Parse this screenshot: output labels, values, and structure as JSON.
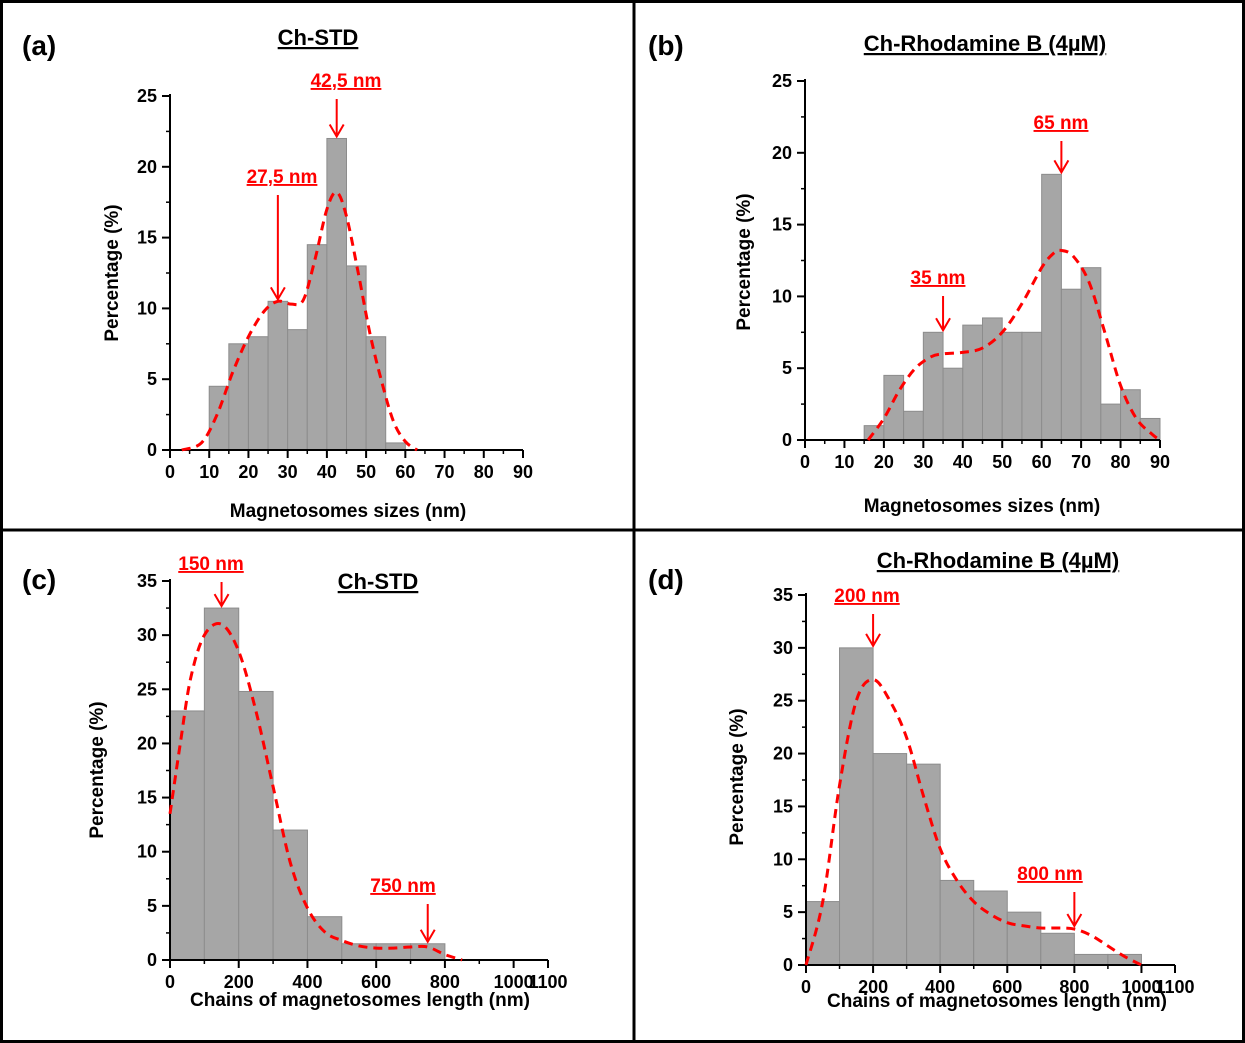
{
  "colors": {
    "bar_fill": "#a6a6a6",
    "bar_stroke": "#8c8c8c",
    "fit_curve": "#ff0000",
    "annotation": "#ff0000",
    "axis": "#000000"
  },
  "chart_data": [
    {
      "panel": "(a)",
      "type": "bar",
      "title": "Ch-STD",
      "xlabel": "Magnetosomes sizes (nm)",
      "ylabel": "Percentage (%)",
      "xlim": [
        0,
        90
      ],
      "ylim": [
        0,
        25
      ],
      "xticks": [
        0,
        10,
        20,
        30,
        40,
        50,
        60,
        70,
        80,
        90
      ],
      "yticks": [
        0,
        5,
        10,
        15,
        20,
        25
      ],
      "bin_width": 5,
      "bins_start": [
        5,
        10,
        15,
        20,
        25,
        30,
        35,
        40,
        45,
        50,
        55
      ],
      "values": [
        0,
        4.5,
        7.5,
        8,
        10.5,
        8.5,
        14.5,
        22,
        13,
        8,
        0.5
      ],
      "fit_curve": {
        "style": "dashed",
        "x": [
          3,
          8,
          12,
          16,
          20,
          24,
          27.5,
          31,
          34,
          37,
          40,
          42.5,
          45,
          48,
          51,
          54,
          57,
          60,
          63
        ],
        "y": [
          0,
          0.5,
          2.5,
          5.5,
          8,
          9.8,
          10.5,
          10.3,
          10.6,
          13.5,
          17,
          18.2,
          16.5,
          12.5,
          8.2,
          4.8,
          2,
          0.6,
          0
        ]
      },
      "annotations": [
        {
          "text": "27,5 nm",
          "x": 27.5,
          "y": 10.5
        },
        {
          "text": "42,5 nm",
          "x": 42.5,
          "y": 22
        }
      ]
    },
    {
      "panel": "(b)",
      "type": "bar",
      "title": "Ch-Rhodamine B (4µM)",
      "xlabel": "Magnetosomes sizes (nm)",
      "ylabel": "Percentage (%)",
      "xlim": [
        0,
        90
      ],
      "ylim": [
        0,
        25
      ],
      "xticks": [
        0,
        10,
        20,
        30,
        40,
        50,
        60,
        70,
        80,
        90
      ],
      "yticks": [
        0,
        5,
        10,
        15,
        20,
        25
      ],
      "bin_width": 5,
      "bins_start": [
        15,
        20,
        25,
        30,
        35,
        40,
        45,
        50,
        55,
        60,
        65,
        70,
        75,
        80,
        85
      ],
      "values": [
        1,
        4.5,
        2,
        7.5,
        5,
        8,
        8.5,
        7.5,
        7.5,
        18.5,
        10.5,
        12,
        2.5,
        3.5,
        1.5
      ],
      "fit_curve": {
        "style": "dashed",
        "x": [
          16,
          20,
          24,
          28,
          32,
          35,
          40,
          45,
          50,
          55,
          60,
          63,
          65,
          68,
          72,
          76,
          80,
          84,
          88,
          90
        ],
        "y": [
          0,
          1.5,
          3.5,
          5,
          5.8,
          6,
          6.1,
          6.4,
          7.5,
          9.5,
          12,
          13,
          13.2,
          12.8,
          11,
          7.5,
          3.8,
          1.5,
          0.4,
          0
        ]
      },
      "annotations": [
        {
          "text": "35 nm",
          "x": 35,
          "y": 7.5
        },
        {
          "text": "65 nm",
          "x": 65,
          "y": 18.5
        }
      ]
    },
    {
      "panel": "(c)",
      "type": "bar",
      "title": "Ch-STD",
      "xlabel": "Chains of magnetosomes length (nm)",
      "ylabel": "Percentage (%)",
      "xlim": [
        0,
        1100
      ],
      "ylim": [
        0,
        35
      ],
      "xticks": [
        0,
        200,
        400,
        600,
        800,
        1000,
        1100
      ],
      "yticks": [
        0,
        5,
        10,
        15,
        20,
        25,
        30,
        35
      ],
      "bin_width": 100,
      "bins_start": [
        0,
        100,
        200,
        300,
        400,
        500,
        600,
        700
      ],
      "values": [
        23,
        32.5,
        24.8,
        12,
        4,
        1.5,
        1.5,
        1.5
      ],
      "fit_curve": {
        "style": "dashed",
        "x": [
          0,
          30,
          60,
          100,
          150,
          200,
          250,
          300,
          350,
          400,
          450,
          500,
          550,
          600,
          650,
          700,
          750,
          800,
          850
        ],
        "y": [
          13.5,
          20,
          26,
          30,
          31,
          28.5,
          23,
          16,
          9,
          4.8,
          2.6,
          1.8,
          1.3,
          1.1,
          1.1,
          1.2,
          1.2,
          0.5,
          0
        ]
      },
      "annotations": [
        {
          "text": "150 nm",
          "x": 150,
          "y": 32.5
        },
        {
          "text": "750 nm",
          "x": 750,
          "y": 1.5
        }
      ]
    },
    {
      "panel": "(d)",
      "type": "bar",
      "title": "Ch-Rhodamine B (4µM)",
      "xlabel": "Chains of magnetosomes length (nm)",
      "ylabel": "Percentage (%)",
      "xlim": [
        0,
        1100
      ],
      "ylim": [
        0,
        35
      ],
      "xticks": [
        0,
        200,
        400,
        600,
        800,
        1000,
        1100
      ],
      "yticks": [
        0,
        5,
        10,
        15,
        20,
        25,
        30,
        35
      ],
      "bin_width": 100,
      "bins_start": [
        0,
        100,
        200,
        300,
        400,
        500,
        600,
        700,
        800,
        900
      ],
      "values": [
        6,
        30,
        20,
        19,
        8,
        7,
        5,
        3,
        1,
        1
      ],
      "fit_curve": {
        "style": "dashed",
        "x": [
          0,
          50,
          100,
          150,
          200,
          250,
          300,
          350,
          400,
          450,
          500,
          550,
          600,
          650,
          700,
          750,
          800,
          850,
          900,
          950,
          1000
        ],
        "y": [
          0,
          6,
          17,
          25,
          27,
          25,
          21.5,
          16,
          11,
          8,
          6,
          4.8,
          4,
          3.7,
          3.5,
          3.5,
          3.4,
          2.8,
          1.8,
          0.8,
          0
        ]
      },
      "annotations": [
        {
          "text": "200 nm",
          "x": 200,
          "y": 30
        },
        {
          "text": "800 nm",
          "x": 800,
          "y": 3.5
        }
      ]
    }
  ]
}
